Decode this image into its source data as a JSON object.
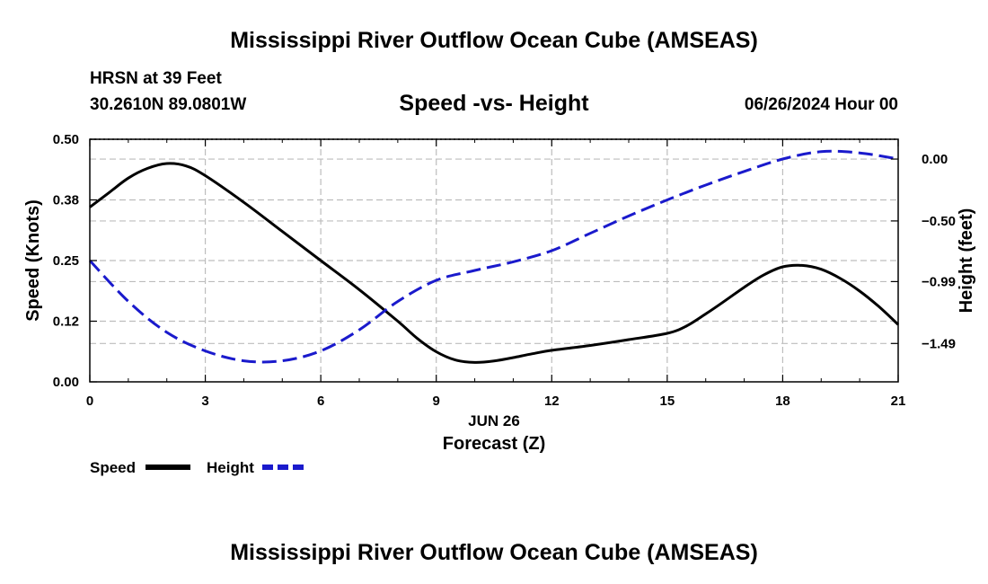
{
  "header": {
    "main_title": "Mississippi River Outflow Ocean Cube (AMSEAS)",
    "station": "HRSN at 39 Feet",
    "coords": "30.2610N  89.0801W",
    "date": "06/26/2024 Hour 00"
  },
  "footer": {
    "repeat_title": "Mississippi River Outflow Ocean Cube (AMSEAS)"
  },
  "chart_data": {
    "type": "line",
    "title": "Speed -vs- Height",
    "xlabel": "Forecast (Z)",
    "xlabel_date": "JUN 26",
    "ylabel": "Speed (Knots)",
    "y2label": "Height (feet)",
    "xlim": [
      0,
      21
    ],
    "ylim": [
      0,
      0.5
    ],
    "y2lim": [
      -1.8,
      0.16
    ],
    "x_ticks": [
      0,
      3,
      6,
      9,
      12,
      15,
      18,
      21
    ],
    "x_tick_labels": [
      "0",
      "3",
      "6",
      "9",
      "12",
      "15",
      "18",
      "21"
    ],
    "y_ticks": [
      0,
      0.125,
      0.25,
      0.375,
      0.5
    ],
    "y_tick_labels": [
      "0.00",
      "0.12",
      "0.25",
      "0.38",
      "0.50"
    ],
    "y2_ticks": [
      0.0,
      -0.5,
      -0.99,
      -1.49
    ],
    "y2_tick_labels": [
      "0.00",
      "−0.50",
      "−0.99",
      "−1.49"
    ],
    "grid": true,
    "legend_position": "bottom-left",
    "series": [
      {
        "name": "Speed",
        "axis": "left",
        "color": "#000000",
        "style": "solid",
        "x": [
          0,
          0.5,
          1,
          1.5,
          2,
          2.5,
          3,
          4,
          5,
          6,
          7,
          8,
          8.5,
          9,
          9.5,
          10,
          10.5,
          11,
          11.5,
          12,
          13,
          14,
          15,
          15.5,
          16,
          16.5,
          17,
          17.5,
          18,
          18.5,
          19,
          19.5,
          20,
          20.5,
          21
        ],
        "values": [
          0.36,
          0.39,
          0.42,
          0.44,
          0.45,
          0.445,
          0.425,
          0.37,
          0.31,
          0.25,
          0.19,
          0.125,
          0.09,
          0.062,
          0.045,
          0.04,
          0.043,
          0.05,
          0.058,
          0.065,
          0.075,
          0.087,
          0.1,
          0.115,
          0.14,
          0.167,
          0.195,
          0.22,
          0.237,
          0.24,
          0.232,
          0.213,
          0.187,
          0.155,
          0.118
        ]
      },
      {
        "name": "Height",
        "axis": "right",
        "color": "#1a1acc",
        "style": "dashed",
        "x": [
          0,
          1,
          2,
          3,
          4,
          5,
          6,
          7,
          8,
          9,
          10,
          11,
          12,
          13,
          14,
          15,
          16,
          17,
          18,
          19,
          20,
          21
        ],
        "values": [
          -0.82,
          -1.15,
          -1.4,
          -1.55,
          -1.63,
          -1.63,
          -1.55,
          -1.38,
          -1.15,
          -0.98,
          -0.9,
          -0.83,
          -0.74,
          -0.6,
          -0.46,
          -0.33,
          -0.21,
          -0.1,
          0.0,
          0.06,
          0.05,
          0.0
        ]
      }
    ]
  }
}
